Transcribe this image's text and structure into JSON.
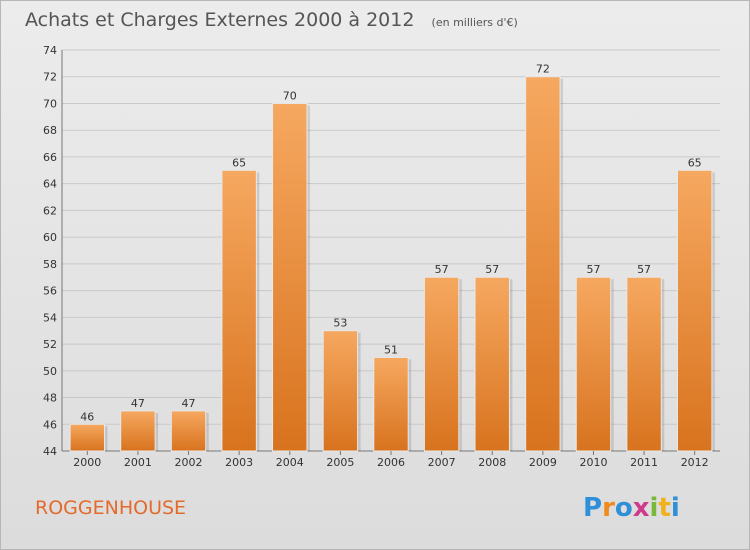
{
  "chart_data": {
    "type": "bar",
    "title": "Achats et Charges Externes 2000 à 2012",
    "subtitle": "(en milliers d'€)",
    "categories": [
      "2000",
      "2001",
      "2002",
      "2003",
      "2004",
      "2005",
      "2006",
      "2007",
      "2008",
      "2009",
      "2010",
      "2011",
      "2012"
    ],
    "values": [
      46,
      47,
      47,
      65,
      70,
      53,
      51,
      57,
      57,
      72,
      57,
      57,
      65
    ],
    "xlabel": "",
    "ylabel": "",
    "ylim": [
      44,
      74
    ],
    "yticks": [
      44,
      46,
      48,
      50,
      52,
      54,
      56,
      58,
      60,
      62,
      64,
      66,
      68,
      70,
      72,
      74
    ],
    "grid": true,
    "bar_color_top": "#f6a860",
    "bar_color_bottom": "#d8731e"
  },
  "footer": {
    "commune": "ROGGENHOUSE",
    "logo": "Proxiti"
  },
  "colors": {
    "commune_text": "#e46a2c",
    "logo_letters": [
      "#2f8fd8",
      "#f08a1c",
      "#2f8fd8",
      "#cf3b8b",
      "#7ab83c",
      "#f0b21c",
      "#2f8fd8"
    ]
  }
}
